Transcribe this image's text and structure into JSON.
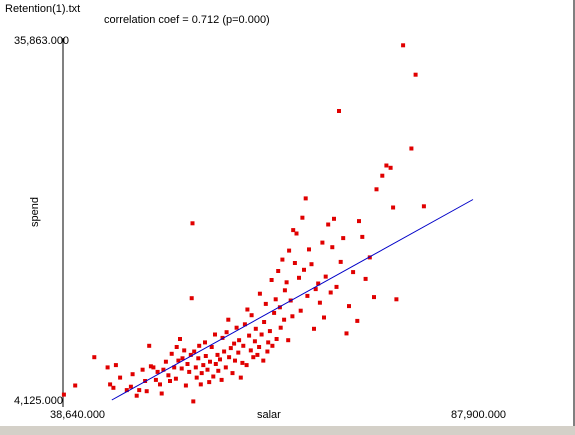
{
  "window": {
    "title": "Retention(1).txt"
  },
  "stats": {
    "correlation_label": "correlation coef = 0.712  (p=0.000)"
  },
  "colors": {
    "points": "#e00000",
    "fit_line": "#0000c8",
    "axis": "#000000"
  },
  "chart_data": {
    "type": "scatter",
    "xlabel": "salar",
    "ylabel": "spend",
    "xlim": [
      38640,
      87900
    ],
    "ylim": [
      4125,
      35863
    ],
    "x_tick_labels": [
      "38,640.000",
      "87,900.000"
    ],
    "y_tick_labels": [
      "4,125.000",
      "35,863.000"
    ],
    "grid": false,
    "fit_line": {
      "x": [
        44500,
        87900
      ],
      "y": [
        4125,
        21800
      ]
    },
    "points": [
      [
        38750,
        4600
      ],
      [
        40100,
        5400
      ],
      [
        42400,
        7900
      ],
      [
        44000,
        7000
      ],
      [
        44300,
        5500
      ],
      [
        44700,
        5200
      ],
      [
        45000,
        7200
      ],
      [
        45500,
        6100
      ],
      [
        46300,
        5000
      ],
      [
        46800,
        5300
      ],
      [
        47000,
        6400
      ],
      [
        47500,
        4500
      ],
      [
        47800,
        5000
      ],
      [
        48200,
        6800
      ],
      [
        48500,
        5800
      ],
      [
        48700,
        4900
      ],
      [
        49200,
        7100
      ],
      [
        49000,
        8900
      ],
      [
        49500,
        7000
      ],
      [
        49800,
        5900
      ],
      [
        50000,
        6600
      ],
      [
        50300,
        5500
      ],
      [
        50500,
        4700
      ],
      [
        50700,
        6800
      ],
      [
        51000,
        7500
      ],
      [
        51300,
        6300
      ],
      [
        51500,
        5800
      ],
      [
        51700,
        8200
      ],
      [
        52000,
        7000
      ],
      [
        52200,
        6000
      ],
      [
        52300,
        8800
      ],
      [
        52500,
        7600
      ],
      [
        52700,
        9500
      ],
      [
        52900,
        6900
      ],
      [
        53000,
        7800
      ],
      [
        53200,
        8500
      ],
      [
        53400,
        5400
      ],
      [
        53600,
        7300
      ],
      [
        53800,
        6600
      ],
      [
        54000,
        8100
      ],
      [
        54100,
        13100
      ],
      [
        54200,
        19700
      ],
      [
        54300,
        4000
      ],
      [
        54400,
        8400
      ],
      [
        54600,
        7000
      ],
      [
        54700,
        6100
      ],
      [
        54900,
        7800
      ],
      [
        55000,
        8900
      ],
      [
        55200,
        5500
      ],
      [
        55300,
        6500
      ],
      [
        55500,
        7200
      ],
      [
        55700,
        9200
      ],
      [
        55800,
        8000
      ],
      [
        56000,
        6800
      ],
      [
        56200,
        5700
      ],
      [
        56300,
        7500
      ],
      [
        56500,
        8800
      ],
      [
        56700,
        6200
      ],
      [
        56900,
        9900
      ],
      [
        57000,
        7300
      ],
      [
        57200,
        8100
      ],
      [
        57300,
        6700
      ],
      [
        57500,
        7700
      ],
      [
        57700,
        5900
      ],
      [
        57800,
        9600
      ],
      [
        58000,
        8400
      ],
      [
        58200,
        7000
      ],
      [
        58300,
        10100
      ],
      [
        58500,
        11200
      ],
      [
        58600,
        7900
      ],
      [
        58800,
        8700
      ],
      [
        59000,
        6500
      ],
      [
        59200,
        9100
      ],
      [
        59300,
        7600
      ],
      [
        59500,
        10500
      ],
      [
        59700,
        8300
      ],
      [
        59800,
        9400
      ],
      [
        60000,
        6100
      ],
      [
        60200,
        7400
      ],
      [
        60300,
        8900
      ],
      [
        60500,
        10800
      ],
      [
        60700,
        7200
      ],
      [
        60800,
        12100
      ],
      [
        61000,
        9800
      ],
      [
        61200,
        8500
      ],
      [
        61300,
        11600
      ],
      [
        61500,
        7900
      ],
      [
        61700,
        9300
      ],
      [
        61800,
        10400
      ],
      [
        62000,
        8100
      ],
      [
        62200,
        8800
      ],
      [
        62300,
        13500
      ],
      [
        62500,
        9900
      ],
      [
        62700,
        7600
      ],
      [
        62800,
        11000
      ],
      [
        63000,
        12600
      ],
      [
        63200,
        8400
      ],
      [
        63300,
        9200
      ],
      [
        63500,
        10200
      ],
      [
        63700,
        14700
      ],
      [
        63800,
        8900
      ],
      [
        64000,
        11800
      ],
      [
        64200,
        13000
      ],
      [
        64300,
        9500
      ],
      [
        64500,
        15500
      ],
      [
        64700,
        12300
      ],
      [
        64800,
        10500
      ],
      [
        65000,
        16500
      ],
      [
        65200,
        11200
      ],
      [
        65300,
        13800
      ],
      [
        65500,
        14500
      ],
      [
        65700,
        9400
      ],
      [
        65800,
        17300
      ],
      [
        66000,
        12900
      ],
      [
        66200,
        11500
      ],
      [
        66300,
        19100
      ],
      [
        66500,
        16200
      ],
      [
        66700,
        18800
      ],
      [
        67000,
        14900
      ],
      [
        67200,
        12000
      ],
      [
        67400,
        20200
      ],
      [
        67600,
        15600
      ],
      [
        67800,
        21900
      ],
      [
        68000,
        13300
      ],
      [
        68200,
        17400
      ],
      [
        68500,
        16100
      ],
      [
        68800,
        10400
      ],
      [
        69000,
        13900
      ],
      [
        69300,
        14400
      ],
      [
        69500,
        12700
      ],
      [
        69800,
        18000
      ],
      [
        70000,
        11400
      ],
      [
        70200,
        15000
      ],
      [
        70500,
        19600
      ],
      [
        70800,
        13600
      ],
      [
        71000,
        17600
      ],
      [
        71200,
        20100
      ],
      [
        71500,
        14100
      ],
      [
        71800,
        29600
      ],
      [
        72000,
        16300
      ],
      [
        72300,
        18400
      ],
      [
        72700,
        10000
      ],
      [
        73000,
        12400
      ],
      [
        73500,
        15400
      ],
      [
        74000,
        11100
      ],
      [
        74200,
        19900
      ],
      [
        74600,
        18500
      ],
      [
        75000,
        14800
      ],
      [
        75500,
        16700
      ],
      [
        76000,
        13200
      ],
      [
        76300,
        22700
      ],
      [
        77000,
        23900
      ],
      [
        77500,
        24800
      ],
      [
        78000,
        24600
      ],
      [
        78300,
        21100
      ],
      [
        78700,
        13000
      ],
      [
        79500,
        35400
      ],
      [
        80500,
        26300
      ],
      [
        81000,
        32800
      ],
      [
        82000,
        21200
      ]
    ]
  }
}
